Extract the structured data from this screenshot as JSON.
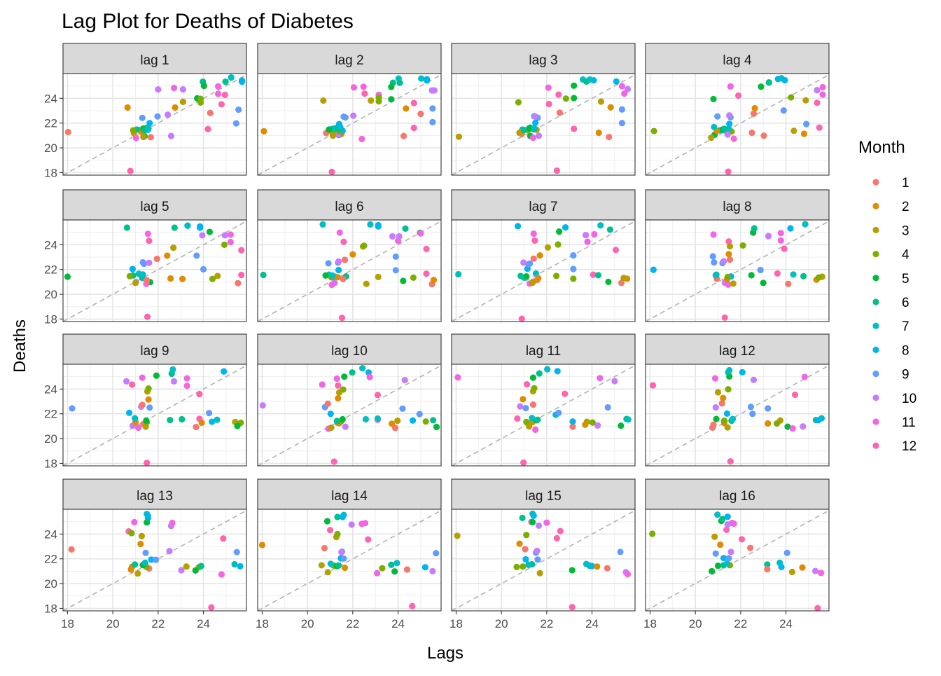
{
  "chart_data": {
    "type": "scatter",
    "title": "Lag Plot for Deaths of Diabetes",
    "xlabel": "Lags",
    "ylabel": "Deaths",
    "xlim": [
      17.8,
      25.9
    ],
    "ylim": [
      17.8,
      26.0
    ],
    "x_ticks": [
      18,
      20,
      22,
      24
    ],
    "y_ticks": [
      18,
      20,
      22,
      24
    ],
    "grid": true,
    "reference_line": "dashed diagonal y = x",
    "legend": {
      "title": "Month",
      "position": "right",
      "items": [
        {
          "label": "1",
          "color": "#F8766D"
        },
        {
          "label": "2",
          "color": "#DE8C00"
        },
        {
          "label": "3",
          "color": "#B79F00"
        },
        {
          "label": "4",
          "color": "#7CAE00"
        },
        {
          "label": "5",
          "color": "#00BA38"
        },
        {
          "label": "6",
          "color": "#00C08B"
        },
        {
          "label": "7",
          "color": "#00BFC4"
        },
        {
          "label": "8",
          "color": "#00B4F0"
        },
        {
          "label": "9",
          "color": "#619CFF"
        },
        {
          "label": "10",
          "color": "#C77CFF"
        },
        {
          "label": "11",
          "color": "#F564E3"
        },
        {
          "label": "12",
          "color": "#FF64B0"
        }
      ]
    },
    "series_values": [
      20.7,
      23.2,
      23.8,
      23.7,
      24.0,
      25.3,
      25.6,
      25.5,
      23.1,
      24.7,
      24.3,
      21.6,
      20.9,
      21.2,
      21.4,
      21.3,
      21.0,
      21.5,
      21.6,
      21.4,
      22.5,
      21.0,
      20.8,
      18.1,
      21.2,
      21.3,
      20.9,
      21.4,
      21.5,
      21.5,
      21.6,
      22.0,
      22.5,
      22.6,
      24.9,
      24.3,
      22.8,
      23.2,
      23.8,
      24.0,
      25.0,
      25.3,
      25.6,
      25.4,
      22.0,
      24.7,
      24.9,
      23.6
    ],
    "series_months": [
      1,
      2,
      3,
      4,
      5,
      6,
      7,
      8,
      9,
      10,
      11,
      12,
      1,
      2,
      3,
      4,
      5,
      6,
      7,
      8,
      9,
      10,
      11,
      12,
      1,
      2,
      3,
      4,
      5,
      6,
      7,
      8,
      9,
      10,
      11,
      12,
      1,
      2,
      3,
      4,
      5,
      6,
      7,
      8,
      9,
      10,
      11,
      12
    ],
    "panels": [
      {
        "label": "lag 1",
        "lag": 1
      },
      {
        "label": "lag 2",
        "lag": 2
      },
      {
        "label": "lag 3",
        "lag": 3
      },
      {
        "label": "lag 4",
        "lag": 4
      },
      {
        "label": "lag 5",
        "lag": 5
      },
      {
        "label": "lag 6",
        "lag": 6
      },
      {
        "label": "lag 7",
        "lag": 7
      },
      {
        "label": "lag 8",
        "lag": 8
      },
      {
        "label": "lag 9",
        "lag": 9
      },
      {
        "label": "lag 10",
        "lag": 10
      },
      {
        "label": "lag 11",
        "lag": 11
      },
      {
        "label": "lag 12",
        "lag": 12
      },
      {
        "label": "lag 13",
        "lag": 13
      },
      {
        "label": "lag 14",
        "lag": 14
      },
      {
        "label": "lag 15",
        "lag": 15
      },
      {
        "label": "lag 16",
        "lag": 16
      }
    ]
  }
}
